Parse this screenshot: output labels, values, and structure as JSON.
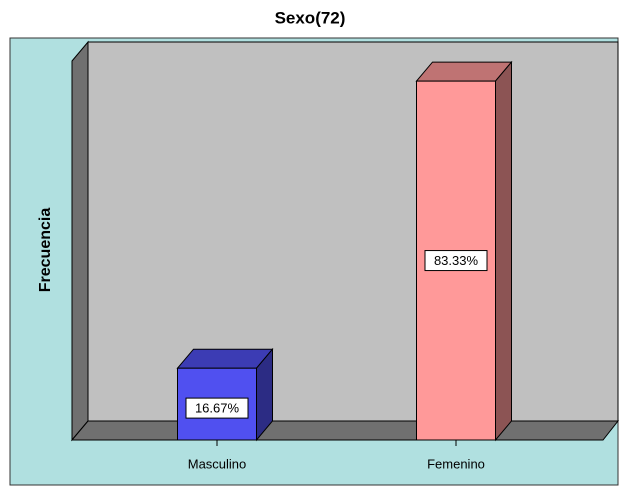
{
  "chart_data": {
    "type": "bar3d",
    "title": "Sexo(72)",
    "ylabel": "Frecuencia",
    "categories": [
      "Masculino",
      "Femenino"
    ],
    "values": [
      16.67,
      83.33
    ],
    "value_labels": [
      "16.67%",
      "83.33%"
    ],
    "colors": [
      "#5050f0",
      "#ff9999"
    ],
    "ylim": [
      0,
      88
    ]
  }
}
